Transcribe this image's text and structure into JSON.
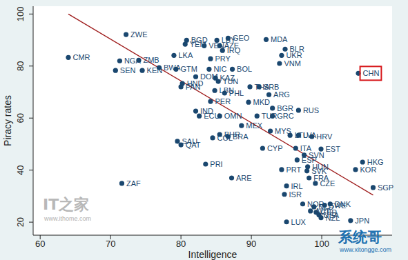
{
  "chart_data": {
    "type": "scatter",
    "x_label": "Intelligence",
    "y_label": "Piracy rates",
    "xlim": [
      59,
      110
    ],
    "xticks": [
      60,
      70,
      80,
      90,
      100
    ],
    "ylim": [
      15,
      103
    ],
    "yticks": [
      20,
      40,
      60,
      80,
      100
    ],
    "grid": false,
    "series": [
      {
        "type": "scatter",
        "color": "#1a476f",
        "marker": "circle",
        "labels": [
          "ZWE",
          "CMR",
          "NGA",
          "ZMB",
          "SEN",
          "KEN",
          "LKA",
          "BGD",
          "YEM",
          "LBY",
          "GEO",
          "VEN",
          "AZE",
          "IRQ",
          "PRY",
          "MDA",
          "BLR",
          "UKR",
          "VNM",
          "NIC",
          "BOL",
          "BWA",
          "GTM",
          "PAN",
          "HND",
          "DOM",
          "KAZ",
          "TUN",
          "LBN",
          "PHL",
          "THA",
          "SRB",
          "ARG",
          "PER",
          "MKD",
          "IND",
          "ECU",
          "OMN",
          "BGR",
          "RUS",
          "TUR",
          "GRC",
          "MEX",
          "BHR",
          "COL",
          "BRA",
          "MYS",
          "SAU",
          "QAT",
          "LTU",
          "LVA",
          "HRV",
          "CYP",
          "ITA",
          "EST",
          "SVN",
          "ESP",
          "HKG",
          "KOR",
          "PRT",
          "HUN",
          "SVK",
          "PRI",
          "ARE",
          "FRA",
          "CZE",
          "SGP",
          "ZAF",
          "IRL",
          "ISR",
          "NOR",
          "SWE",
          "DNK",
          "NLD",
          "AUT",
          "GBR",
          "USA",
          "NZL",
          "JPN",
          "LUX",
          "CHN"
        ],
        "x": [
          72.2,
          64.0,
          71.3,
          74.0,
          70.7,
          74.5,
          79.0,
          80.8,
          80.6,
          85.1,
          86.7,
          83.3,
          85.5,
          85.9,
          84.2,
          92.1,
          94.8,
          94.3,
          94.0,
          84.0,
          87.3,
          76.9,
          79.3,
          80.0,
          80.2,
          82.1,
          84.9,
          85.3,
          84.8,
          86.2,
          89.8,
          91.1,
          92.5,
          84.2,
          89.6,
          82.1,
          82.6,
          85.5,
          93.0,
          96.7,
          90.8,
          93.0,
          88.6,
          85.5,
          84.5,
          86.7,
          92.7,
          79.5,
          80.0,
          95.5,
          96.7,
          98.6,
          91.6,
          96.3,
          99.9,
          97.5,
          96.5,
          105.8,
          104.8,
          94.3,
          98.0,
          97.9,
          83.5,
          87.2,
          98.2,
          99.1,
          107.3,
          71.6,
          95.0,
          94.7,
          97.3,
          100.4,
          101.2,
          98.9,
          98.4,
          99.2,
          99.6,
          99.9,
          104.1,
          95.0,
          105.2
        ],
        "values": [
          92.1,
          83.3,
          82.0,
          82.2,
          78.3,
          78.3,
          84.1,
          89.9,
          88.4,
          89.9,
          90.7,
          87.8,
          87.8,
          86.0,
          82.8,
          90.2,
          86.5,
          84.1,
          81.0,
          78.8,
          78.8,
          79.4,
          78.8,
          72.0,
          73.3,
          75.9,
          75.4,
          74.1,
          70.6,
          69.6,
          72.0,
          72.0,
          69.0,
          66.4,
          66.1,
          62.7,
          60.8,
          60.8,
          63.8,
          63.0,
          60.8,
          60.8,
          57.1,
          53.7,
          52.4,
          52.9,
          55.0,
          51.1,
          49.7,
          53.4,
          53.4,
          52.9,
          48.4,
          48.4,
          48.1,
          45.8,
          43.9,
          43.1,
          40.2,
          40.2,
          41.3,
          39.7,
          42.3,
          37.0,
          37.0,
          34.9,
          33.3,
          34.9,
          33.9,
          30.7,
          27.0,
          26.5,
          27.0,
          25.9,
          24.3,
          23.8,
          22.8,
          21.7,
          20.6,
          20.1,
          77.2
        ]
      },
      {
        "type": "line",
        "color": "#9e1b1b",
        "line_style": "solid",
        "x": [
          64,
          107.3
        ],
        "values": [
          100,
          30.4
        ]
      }
    ],
    "annotations": [
      {
        "text": "CHN",
        "color": "#d7191c"
      }
    ],
    "watermarks": [
      "IT之家",
      "www.ithome.com",
      "系统哥",
      "www.xitongge.com"
    ]
  }
}
